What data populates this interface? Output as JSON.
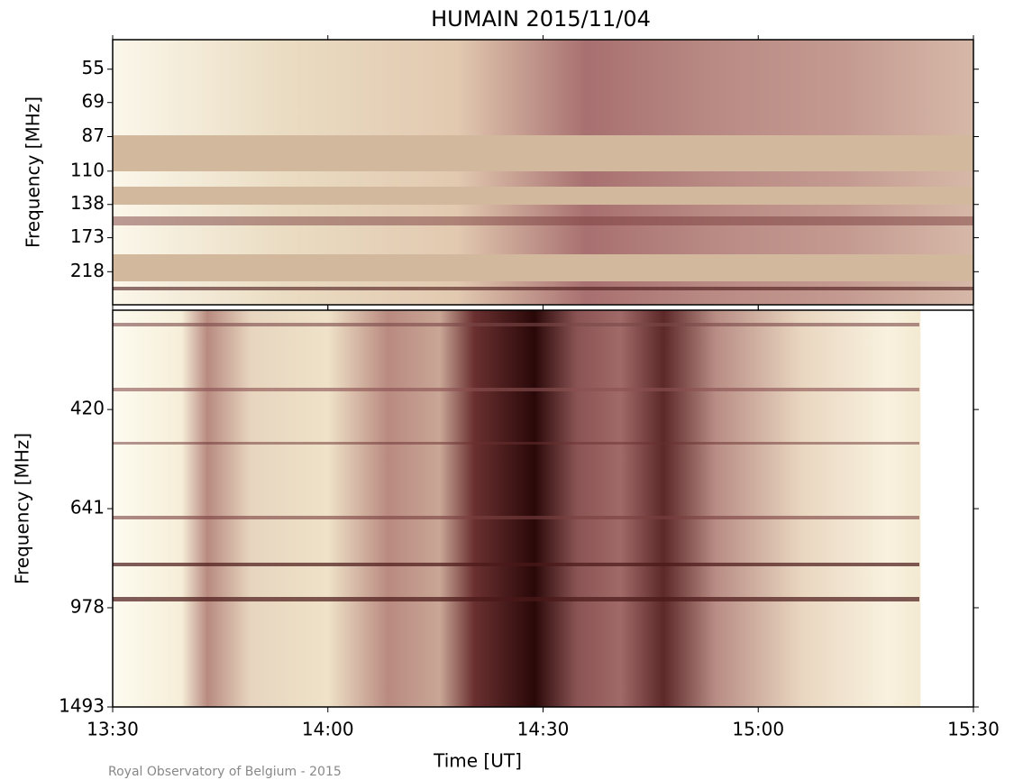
{
  "chart_data": [
    {
      "type": "spectrogram",
      "title": "HUMAIN 2015/11/04",
      "ylabel": "Frequency [MHz]",
      "xlim": [
        "13:30",
        "15:30"
      ],
      "ylim": [
        45,
        273
      ],
      "yscale": "log",
      "y_inverted": true,
      "yticks": [
        55,
        69,
        87,
        110,
        138,
        173,
        218
      ]
    },
    {
      "type": "spectrogram",
      "ylabel": "Frequency [MHz]",
      "xlabel": "Time [UT]",
      "xlim": [
        "13:30",
        "15:30"
      ],
      "ylim": [
        275,
        1493
      ],
      "yscale": "log",
      "y_inverted": true,
      "yticks": [
        420,
        641,
        978,
        1493
      ],
      "xticks": [
        "13:30",
        "14:00",
        "14:30",
        "15:00",
        "15:30"
      ]
    }
  ],
  "credit": "Royal Observatory of Belgium - 2015"
}
